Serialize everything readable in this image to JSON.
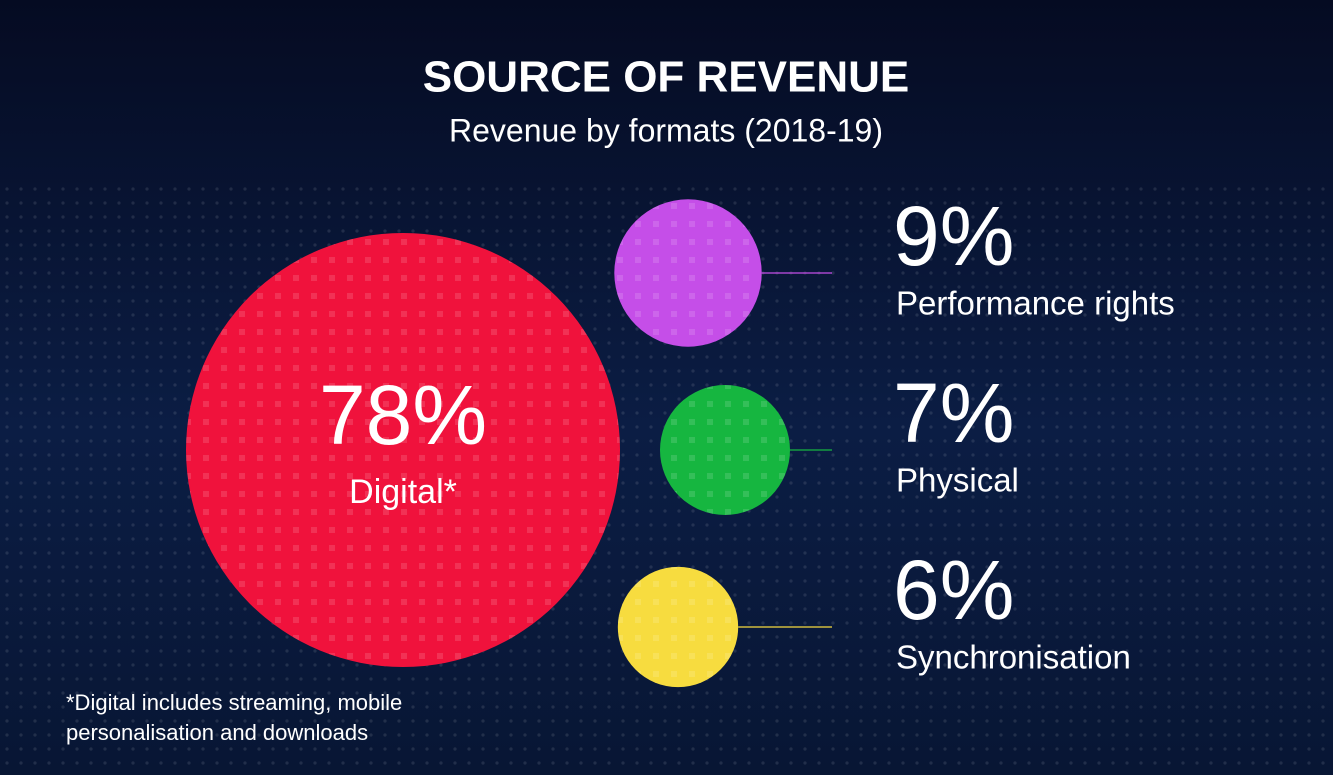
{
  "chart_data": {
    "type": "bubble",
    "title": "SOURCE OF REVENUE",
    "subtitle": "Revenue by formats (2018-19)",
    "categories": [
      "Digital*",
      "Performance rights",
      "Physical",
      "Synchronisation"
    ],
    "values": [
      78,
      9,
      7,
      6
    ],
    "value_labels": [
      "78%",
      "9%",
      "7%",
      "6%"
    ],
    "colors": [
      "#f0123c",
      "#c54ee8",
      "#16b640",
      "#f7dc3f"
    ],
    "footnote": "*Digital includes streaming, mobile personalisation and downloads"
  }
}
